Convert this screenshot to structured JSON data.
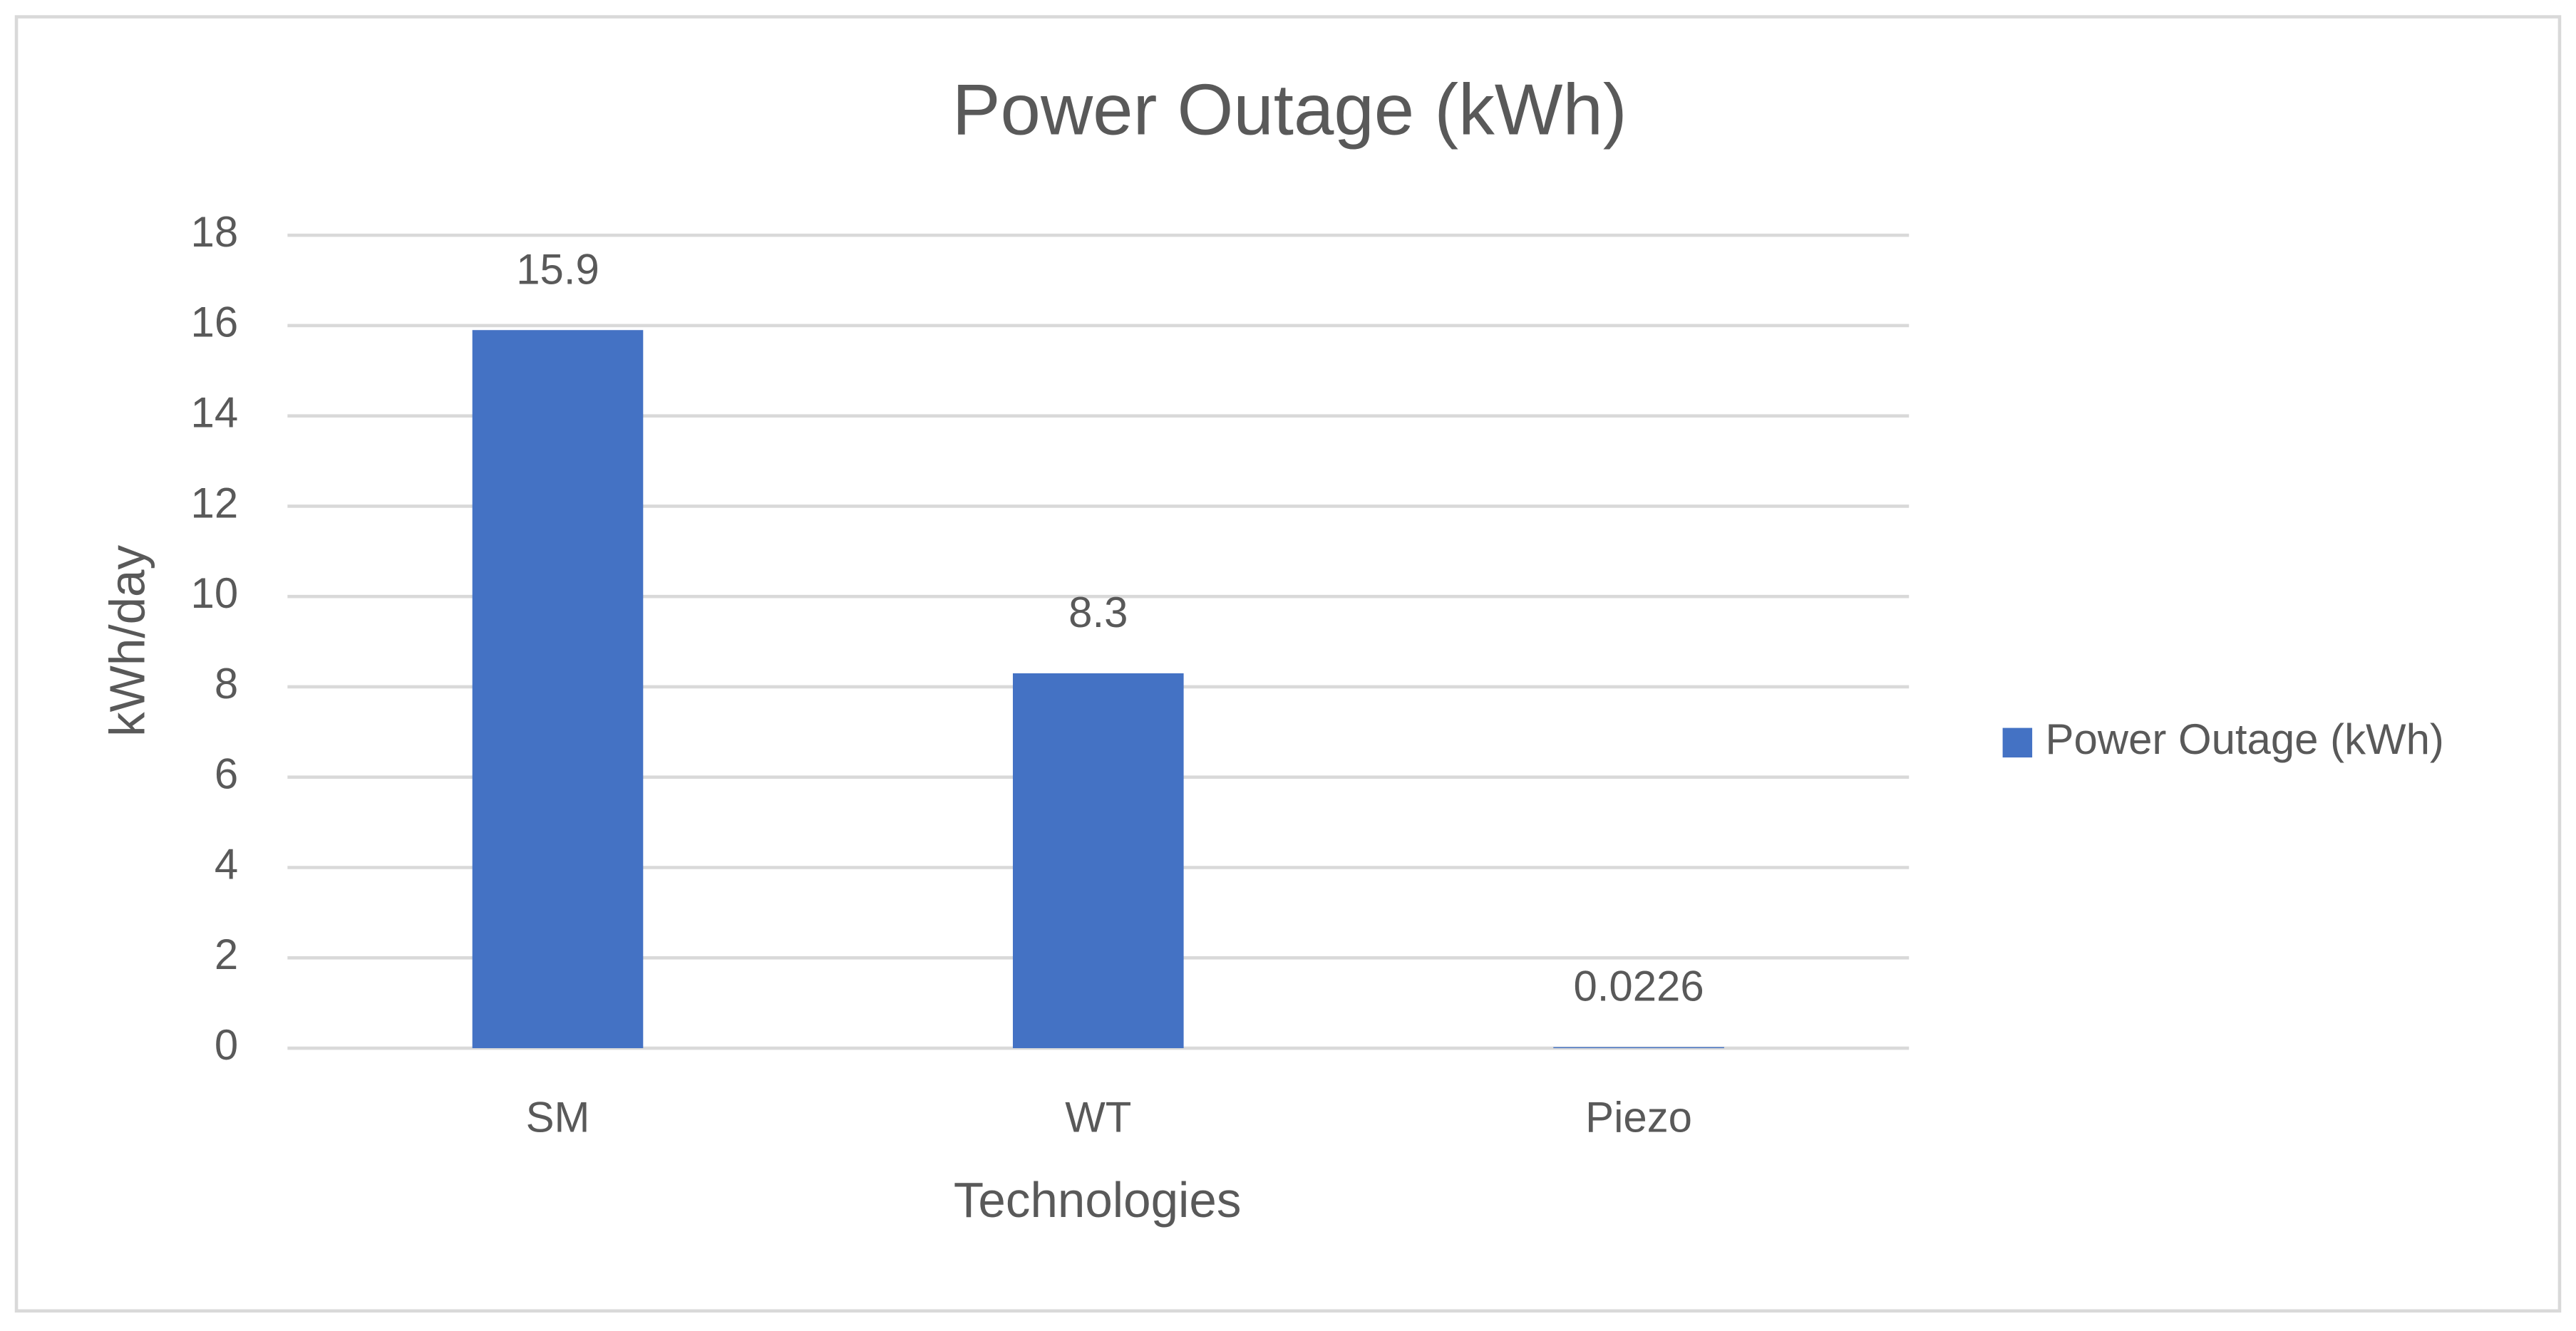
{
  "chart_data": {
    "type": "bar",
    "title": "Power Outage (kWh)",
    "x_label": "Technologies",
    "y_label": "kWh/day",
    "categories": [
      "SM",
      "WT",
      "Piezo"
    ],
    "series": [
      {
        "name": "Power Outage (kWh)",
        "color": "#4472c4",
        "values": [
          15.9,
          8.3,
          0.0226
        ]
      }
    ],
    "ylim": [
      0,
      18
    ],
    "yticks": [
      0,
      2,
      4,
      6,
      8,
      10,
      12,
      14,
      16,
      18
    ],
    "grid": true,
    "legend": "right"
  }
}
